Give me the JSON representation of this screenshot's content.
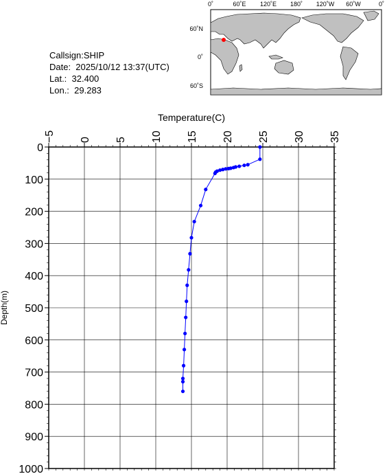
{
  "info": {
    "callsign": "Callsign:SHIP",
    "date": "Date:  2025/10/12 13:37(UTC)",
    "lat": "Lat.:  32.400",
    "lon": "Lon.:  29.283"
  },
  "map": {
    "lon_labels": [
      "0˚",
      "60˚E",
      "120˚E",
      "180˚",
      "120˚W",
      "60˚W",
      "0˚"
    ],
    "lat_labels": [
      "60˚N",
      "0˚",
      "60˚S"
    ],
    "marker": {
      "lat": 32.4,
      "lon": 29.283
    },
    "colors": {
      "ocean": "#ffffff",
      "land": "#c0c0c0",
      "marker": "#ff0000"
    }
  },
  "chart_data": {
    "type": "line",
    "title": "",
    "xlabel": "Temperature(C)",
    "ylabel": "Depth(m)",
    "xlim": [
      -5,
      35
    ],
    "ylim": [
      0,
      1000
    ],
    "x_ticks": [
      -5,
      0,
      5,
      10,
      15,
      20,
      25,
      30,
      35
    ],
    "y_ticks": [
      0,
      100,
      200,
      300,
      400,
      500,
      600,
      700,
      800,
      900,
      1000
    ],
    "grid": true,
    "axes_position": "x-axis on top, depth increasing downward",
    "series": [
      {
        "color": "#0000ff",
        "temperature": [
          24.6,
          24.6,
          22.9,
          22.4,
          21.7,
          21.2,
          20.9,
          20.5,
          20.2,
          19.8,
          19.4,
          19.0,
          18.6,
          18.4,
          18.3,
          17.0,
          16.3,
          15.4,
          15.0,
          14.8,
          14.6,
          14.4,
          14.3,
          14.2,
          14.1,
          14.0,
          13.9,
          13.8,
          13.8,
          13.8
        ],
        "depth": [
          0,
          38,
          55,
          57,
          60,
          62,
          64,
          66,
          67,
          68,
          70,
          72,
          75,
          78,
          82,
          132,
          182,
          232,
          282,
          332,
          382,
          430,
          480,
          530,
          580,
          630,
          680,
          720,
          730,
          760
        ]
      }
    ]
  }
}
